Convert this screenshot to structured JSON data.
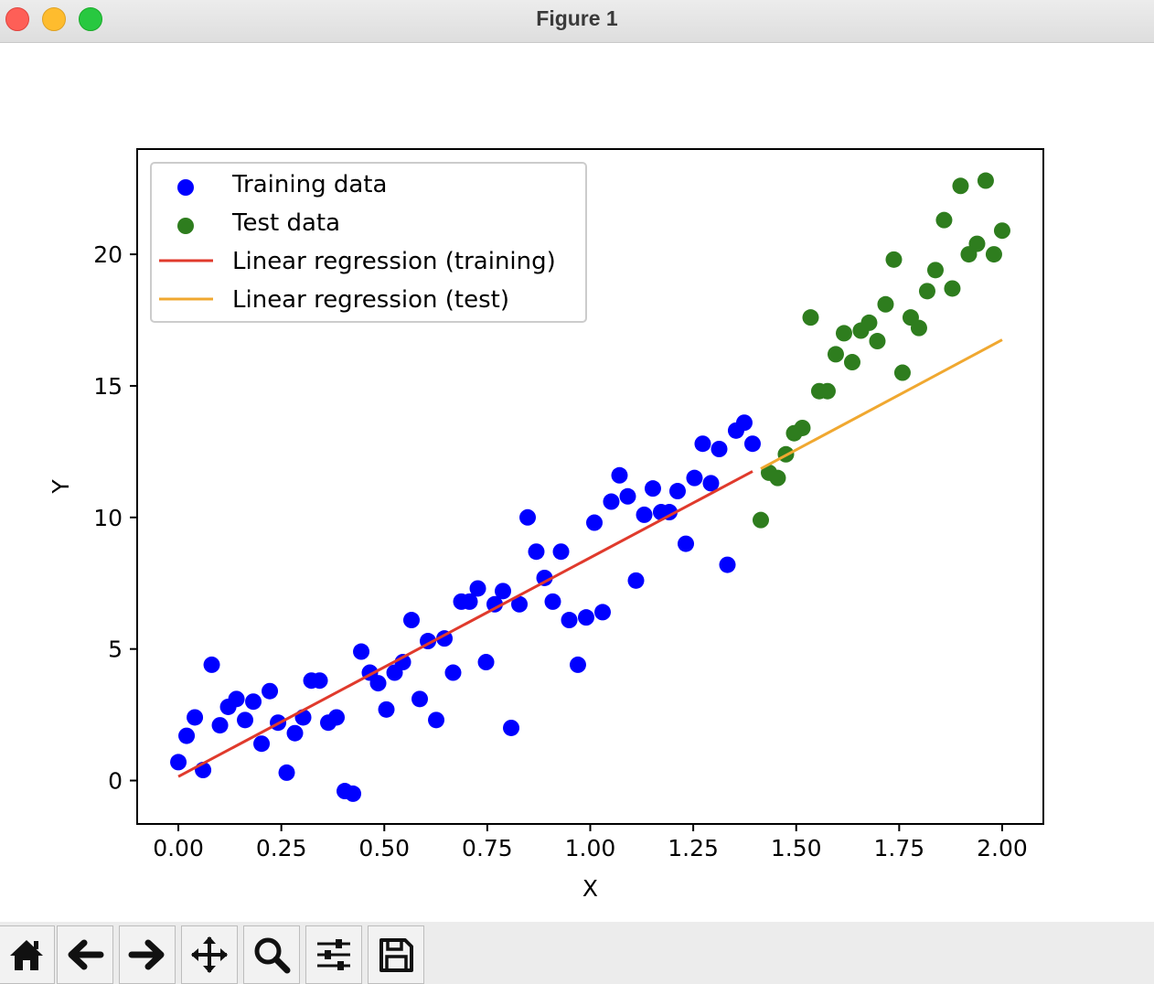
{
  "window": {
    "title": "Figure 1"
  },
  "toolbar": {
    "buttons": [
      {
        "icon": "home-icon"
      },
      {
        "icon": "back-arrow-icon"
      },
      {
        "icon": "forward-arrow-icon"
      },
      {
        "icon": "pan-icon"
      },
      {
        "icon": "zoom-icon"
      },
      {
        "icon": "configure-subplots-icon"
      },
      {
        "icon": "save-icon"
      }
    ]
  },
  "chart_data": {
    "type": "scatter",
    "title": "",
    "xlabel": "X",
    "ylabel": "Y",
    "xlim": [
      -0.1,
      2.1
    ],
    "ylim": [
      -1.65,
      24.0
    ],
    "xticks": [
      0.0,
      0.25,
      0.5,
      0.75,
      1.0,
      1.25,
      1.5,
      1.75,
      2.0
    ],
    "xtick_labels": [
      "0.00",
      "0.25",
      "0.50",
      "0.75",
      "1.00",
      "1.25",
      "1.50",
      "1.75",
      "2.00"
    ],
    "yticks": [
      0,
      5,
      10,
      15,
      20
    ],
    "ytick_labels": [
      "0",
      "5",
      "10",
      "15",
      "20"
    ],
    "grid": false,
    "legend_position": "upper-left",
    "colors": {
      "training": "#0000ff",
      "test": "#2e7d1e",
      "fit_train": "#e03a2c",
      "fit_test": "#f0a830"
    },
    "series": [
      {
        "name": "Training data",
        "kind": "scatter",
        "x": [
          0.0,
          0.02,
          0.04,
          0.06,
          0.081,
          0.101,
          0.121,
          0.141,
          0.162,
          0.182,
          0.202,
          0.222,
          0.242,
          0.263,
          0.283,
          0.303,
          0.323,
          0.343,
          0.364,
          0.384,
          0.404,
          0.424,
          0.444,
          0.465,
          0.485,
          0.505,
          0.525,
          0.545,
          0.566,
          0.586,
          0.606,
          0.626,
          0.646,
          0.667,
          0.687,
          0.707,
          0.727,
          0.747,
          0.768,
          0.788,
          0.808,
          0.828,
          0.848,
          0.869,
          0.889,
          0.909,
          0.929,
          0.949,
          0.97,
          0.99,
          1.01,
          1.03,
          1.051,
          1.071,
          1.091,
          1.111,
          1.131,
          1.152,
          1.172,
          1.192,
          1.212,
          1.232,
          1.253,
          1.273,
          1.293,
          1.313,
          1.333,
          1.354,
          1.374,
          1.394
        ],
        "y": [
          0.7,
          1.7,
          2.4,
          0.4,
          4.4,
          2.1,
          2.8,
          3.1,
          2.3,
          3.0,
          1.4,
          3.4,
          2.2,
          0.3,
          1.8,
          2.4,
          3.8,
          3.8,
          2.2,
          2.4,
          -0.4,
          -0.5,
          4.9,
          4.1,
          3.7,
          2.7,
          4.1,
          4.5,
          6.1,
          3.1,
          5.3,
          2.3,
          5.4,
          4.1,
          6.8,
          6.8,
          7.3,
          4.5,
          6.7,
          7.2,
          2.0,
          6.7,
          10.0,
          8.7,
          7.7,
          6.8,
          8.7,
          6.1,
          4.4,
          6.2,
          9.8,
          6.4,
          10.6,
          11.6,
          10.8,
          7.6,
          10.1,
          11.1,
          10.2,
          10.2,
          11.0,
          9.0,
          11.5,
          12.8,
          11.3,
          12.6,
          8.2,
          13.3,
          13.6,
          12.8
        ]
      },
      {
        "name": "Test data",
        "kind": "scatter",
        "x": [
          1.414,
          1.434,
          1.455,
          1.475,
          1.495,
          1.515,
          1.535,
          1.556,
          1.576,
          1.596,
          1.616,
          1.636,
          1.657,
          1.677,
          1.697,
          1.717,
          1.737,
          1.758,
          1.778,
          1.798,
          1.818,
          1.838,
          1.859,
          1.879,
          1.899,
          1.919,
          1.939,
          1.96,
          1.98,
          2.0
        ],
        "y": [
          9.9,
          11.7,
          11.5,
          12.4,
          13.2,
          13.4,
          17.6,
          14.8,
          14.8,
          16.2,
          17.0,
          15.9,
          17.1,
          17.4,
          16.7,
          18.1,
          19.8,
          15.5,
          17.6,
          17.2,
          18.6,
          19.4,
          21.3,
          18.7,
          22.6,
          20.0,
          20.4,
          22.8,
          20.0,
          20.9
        ]
      },
      {
        "name": "Linear regression (training)",
        "kind": "line",
        "x": [
          0.0,
          1.394
        ],
        "y": [
          0.15,
          11.75
        ]
      },
      {
        "name": "Linear regression (test)",
        "kind": "line",
        "x": [
          1.414,
          2.0
        ],
        "y": [
          11.85,
          16.75
        ]
      }
    ]
  }
}
